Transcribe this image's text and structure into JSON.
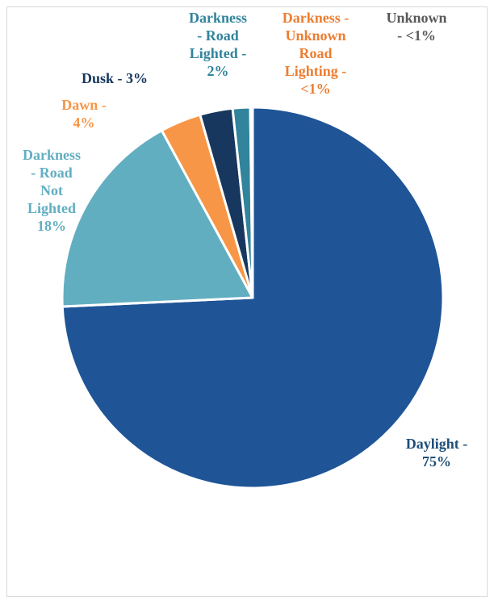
{
  "chart_data": {
    "type": "pie",
    "title": "",
    "slices": [
      {
        "name": "Daylight",
        "value": 75,
        "label": "Daylight - 75%",
        "lines": [
          "Daylight -",
          "75%"
        ],
        "color": "#1f5597",
        "label_color": "#1f4e79"
      },
      {
        "name": "Darkness - Road Not Lighted",
        "value": 18,
        "label": "Darkness - Road Not Lighted 18%",
        "lines": [
          "Darkness",
          "- Road",
          "Not",
          "Lighted",
          "18%"
        ],
        "color": "#62aec1",
        "label_color": "#62aec1"
      },
      {
        "name": "Dawn",
        "value": 3.5,
        "label": "Dawn - 4%",
        "lines": [
          "Dawn -",
          "4%"
        ],
        "color": "#f79646",
        "label_color": "#f79646"
      },
      {
        "name": "Dusk",
        "value": 2.8,
        "label": "Dusk - 3%",
        "lines": [
          "Dusk - 3%"
        ],
        "color": "#17375e",
        "label_color": "#17375e"
      },
      {
        "name": "Darkness - Road Lighted",
        "value": 1.5,
        "label": "Darkness - Road Lighted - 2%",
        "lines": [
          "Darkness",
          "- Road",
          "Lighted -",
          "2%"
        ],
        "color": "#31849b",
        "label_color": "#31849b"
      },
      {
        "name": "Darkness - Unknown Road Lighting",
        "value": 0.1,
        "label": "Darkness - Unknown Road Lighting - <1%",
        "lines": [
          "Darkness -",
          "Unknown",
          "Road",
          "Lighting -",
          "<1%"
        ],
        "color": "#ed7d31",
        "label_color": "#ed7d31"
      },
      {
        "name": "Unknown",
        "value": 0.1,
        "label": "Unknown - <1%",
        "lines": [
          "Unknown",
          "- <1%"
        ],
        "color": "#7f7f7f",
        "label_color": "#595959"
      }
    ]
  }
}
